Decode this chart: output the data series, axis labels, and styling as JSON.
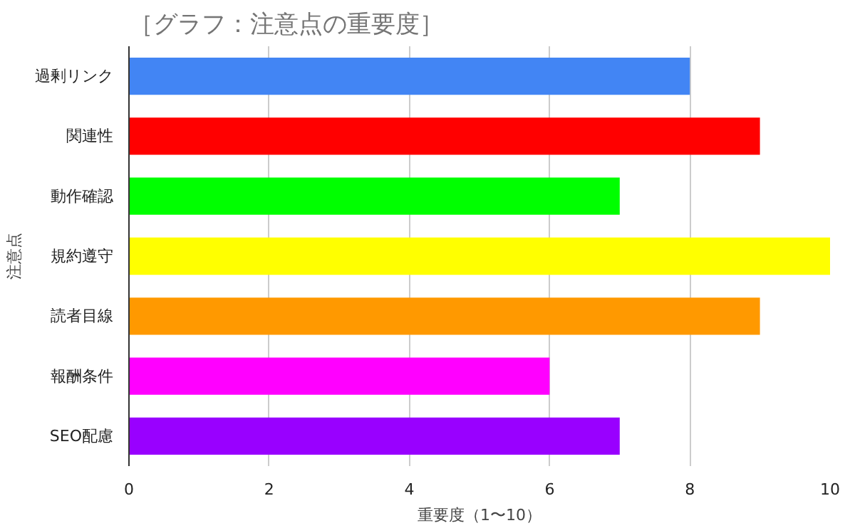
{
  "chart_data": {
    "type": "bar",
    "orientation": "horizontal",
    "title": "［グラフ：注意点の重要度］",
    "xlabel": "重要度（1〜10）",
    "ylabel": "注意点",
    "categories": [
      "過剰リンク",
      "関連性",
      "動作確認",
      "規約遵守",
      "読者目線",
      "報酬条件",
      "SEO配慮"
    ],
    "values": [
      8,
      9,
      7,
      10,
      9,
      6,
      7
    ],
    "colors": [
      "#4285f4",
      "#ff0000",
      "#00ff00",
      "#ffff00",
      "#ff9900",
      "#ff00ff",
      "#9900ff"
    ],
    "xlim": [
      0,
      10
    ],
    "xticks": [
      0,
      2,
      4,
      6,
      8,
      10
    ],
    "grid": "x"
  }
}
